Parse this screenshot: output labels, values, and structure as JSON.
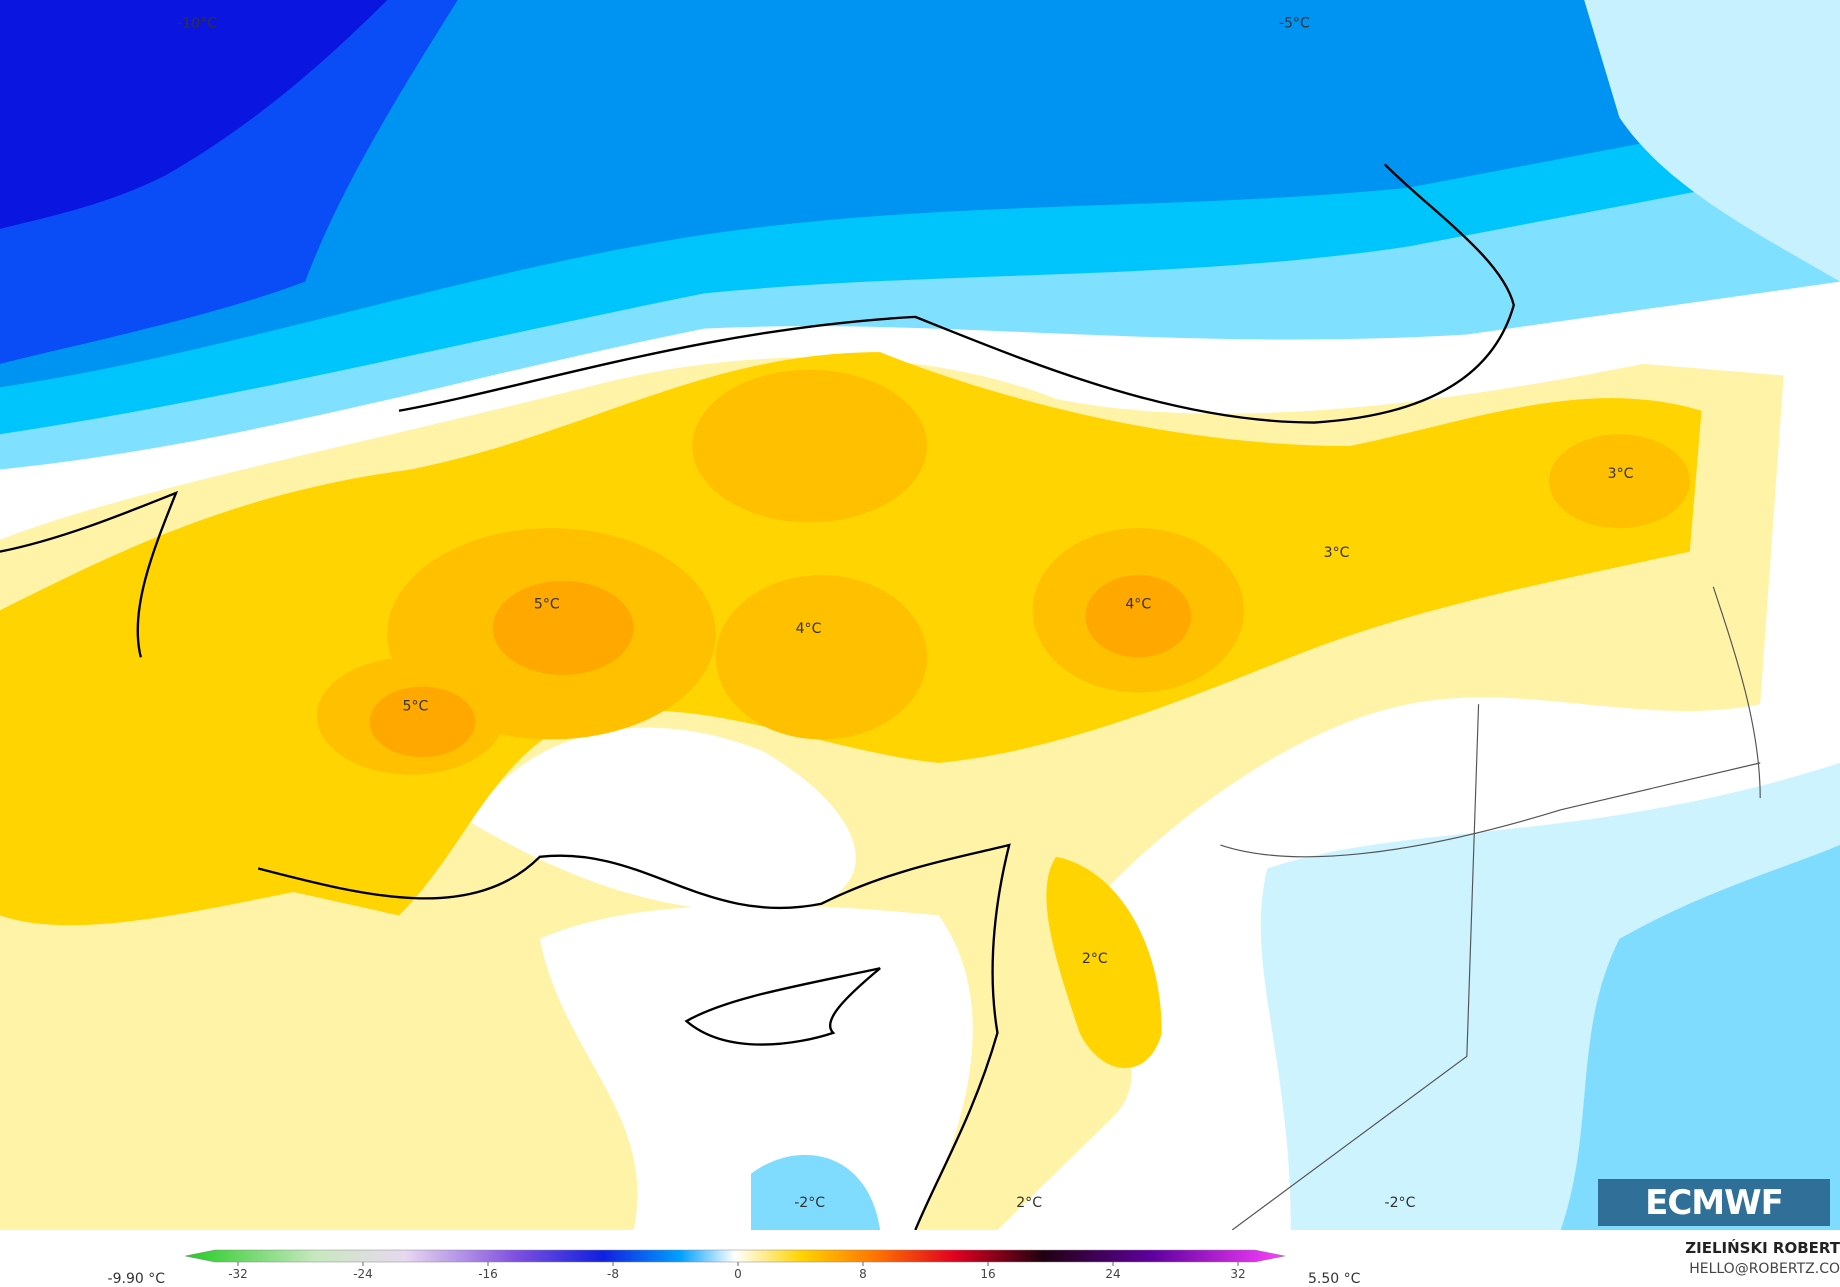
{
  "map": {
    "labels": [
      "-10°C",
      "-5°C",
      "5°C",
      "5°C",
      "4°C",
      "4°C",
      "3°C",
      "3°C",
      "2°C",
      "-2°C",
      "2°C",
      "-2°C"
    ],
    "logo": "ECMWF",
    "author": "ZIELIŃSKI ROBERT",
    "contact": "HELLO@ROBERTZ.CO"
  },
  "colorbar": {
    "min_label": "-9.90 °C",
    "max_label": "5.50 °C",
    "ticks": [
      -32,
      -24,
      -16,
      -8,
      0,
      8,
      16,
      24,
      32
    ]
  }
}
